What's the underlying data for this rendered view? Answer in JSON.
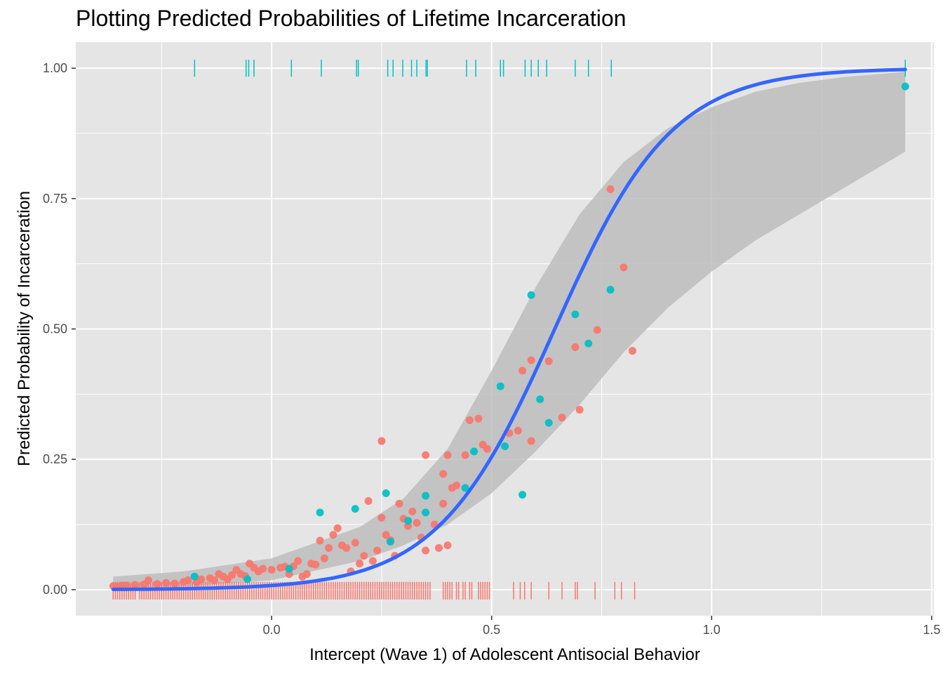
{
  "chart_data": {
    "type": "scatter",
    "title": "Plotting Predicted Probabilities of Lifetime Incarceration",
    "xlabel": "Intercept (Wave 1) of Adolescent Antisocial Behavior",
    "ylabel": "Predicted Probability of Incarceration",
    "xlim": [
      -0.445,
      1.505
    ],
    "ylim": [
      -0.05,
      1.05
    ],
    "x_ticks": [
      0.0,
      0.5,
      1.0,
      1.5
    ],
    "x_tick_labels": [
      "0.0",
      "0.5",
      "1.0",
      "1.5"
    ],
    "y_ticks": [
      0.0,
      0.25,
      0.5,
      0.75,
      1.0
    ],
    "y_tick_labels": [
      "0.00",
      "0.25",
      "0.50",
      "0.75",
      "1.00"
    ],
    "grid": true,
    "legend": "none",
    "colors": {
      "panel": "#e5e5e5",
      "grid": "#ffffff",
      "group_not_incarcerated": "#f8766d",
      "group_incarcerated": "#00bfc4",
      "fit_line": "#3366ff",
      "ribbon": "#bdbdbd",
      "tick_text": "#4d4d4d"
    },
    "series": [
      {
        "key": "not_incarcerated",
        "outcome": 0,
        "points": [
          [
            -0.36,
            0.007
          ],
          [
            -0.35,
            0.006
          ],
          [
            -0.34,
            0.008
          ],
          [
            -0.33,
            0.008
          ],
          [
            -0.31,
            0.009
          ],
          [
            -0.29,
            0.01
          ],
          [
            -0.28,
            0.018
          ],
          [
            -0.26,
            0.011
          ],
          [
            -0.24,
            0.013
          ],
          [
            -0.22,
            0.012
          ],
          [
            -0.2,
            0.015
          ],
          [
            -0.19,
            0.018
          ],
          [
            -0.17,
            0.014
          ],
          [
            -0.16,
            0.02
          ],
          [
            -0.14,
            0.022
          ],
          [
            -0.13,
            0.018
          ],
          [
            -0.12,
            0.03
          ],
          [
            -0.11,
            0.025
          ],
          [
            -0.1,
            0.02
          ],
          [
            -0.09,
            0.028
          ],
          [
            -0.08,
            0.038
          ],
          [
            -0.07,
            0.03
          ],
          [
            -0.06,
            0.026
          ],
          [
            -0.05,
            0.05
          ],
          [
            -0.04,
            0.042
          ],
          [
            -0.03,
            0.035
          ],
          [
            -0.02,
            0.04
          ],
          [
            0.0,
            0.038
          ],
          [
            0.02,
            0.042
          ],
          [
            0.03,
            0.044
          ],
          [
            0.04,
            0.03
          ],
          [
            0.05,
            0.045
          ],
          [
            0.06,
            0.055
          ],
          [
            0.07,
            0.025
          ],
          [
            0.08,
            0.03
          ],
          [
            0.09,
            0.05
          ],
          [
            0.1,
            0.048
          ],
          [
            0.11,
            0.094
          ],
          [
            0.12,
            0.06
          ],
          [
            0.13,
            0.08
          ],
          [
            0.14,
            0.105
          ],
          [
            0.15,
            0.118
          ],
          [
            0.16,
            0.085
          ],
          [
            0.17,
            0.08
          ],
          [
            0.18,
            0.035
          ],
          [
            0.19,
            0.09
          ],
          [
            0.2,
            0.05
          ],
          [
            0.21,
            0.065
          ],
          [
            0.22,
            0.17
          ],
          [
            0.23,
            0.055
          ],
          [
            0.24,
            0.075
          ],
          [
            0.25,
            0.285
          ],
          [
            0.25,
            0.138
          ],
          [
            0.26,
            0.105
          ],
          [
            0.27,
            0.095
          ],
          [
            0.28,
            0.065
          ],
          [
            0.29,
            0.165
          ],
          [
            0.3,
            0.136
          ],
          [
            0.31,
            0.122
          ],
          [
            0.32,
            0.15
          ],
          [
            0.33,
            0.128
          ],
          [
            0.34,
            0.1
          ],
          [
            0.35,
            0.258
          ],
          [
            0.35,
            0.075
          ],
          [
            0.37,
            0.125
          ],
          [
            0.38,
            0.08
          ],
          [
            0.39,
            0.165
          ],
          [
            0.39,
            0.222
          ],
          [
            0.4,
            0.258
          ],
          [
            0.4,
            0.085
          ],
          [
            0.41,
            0.195
          ],
          [
            0.42,
            0.2
          ],
          [
            0.44,
            0.258
          ],
          [
            0.45,
            0.325
          ],
          [
            0.47,
            0.328
          ],
          [
            0.48,
            0.278
          ],
          [
            0.49,
            0.27
          ],
          [
            0.54,
            0.3
          ],
          [
            0.56,
            0.305
          ],
          [
            0.57,
            0.42
          ],
          [
            0.59,
            0.44
          ],
          [
            0.59,
            0.285
          ],
          [
            0.63,
            0.438
          ],
          [
            0.66,
            0.33
          ],
          [
            0.69,
            0.465
          ],
          [
            0.7,
            0.345
          ],
          [
            0.74,
            0.498
          ],
          [
            0.77,
            0.768
          ],
          [
            0.8,
            0.618
          ],
          [
            0.82,
            0.458
          ]
        ]
      },
      {
        "key": "incarcerated",
        "outcome": 1,
        "points": [
          [
            -0.175,
            0.025
          ],
          [
            -0.055,
            0.02
          ],
          [
            0.04,
            0.04
          ],
          [
            0.11,
            0.148
          ],
          [
            0.19,
            0.155
          ],
          [
            0.26,
            0.185
          ],
          [
            0.27,
            0.092
          ],
          [
            0.31,
            0.132
          ],
          [
            0.35,
            0.18
          ],
          [
            0.35,
            0.148
          ],
          [
            0.44,
            0.195
          ],
          [
            0.46,
            0.265
          ],
          [
            0.52,
            0.39
          ],
          [
            0.53,
            0.275
          ],
          [
            0.57,
            0.182
          ],
          [
            0.59,
            0.565
          ],
          [
            0.61,
            0.365
          ],
          [
            0.63,
            0.32
          ],
          [
            0.69,
            0.528
          ],
          [
            0.72,
            0.472
          ],
          [
            0.77,
            0.575
          ],
          [
            1.44,
            0.965
          ]
        ]
      }
    ],
    "rug": {
      "incarcerated_x": [
        -0.175,
        -0.058,
        -0.052,
        -0.04,
        0.045,
        0.113,
        0.193,
        0.197,
        0.264,
        0.276,
        0.298,
        0.318,
        0.33,
        0.351,
        0.354,
        0.443,
        0.464,
        0.52,
        0.527,
        0.576,
        0.59,
        0.606,
        0.625,
        0.69,
        0.72,
        0.772,
        1.44
      ],
      "not_incarcerated_x": [
        -0.36,
        -0.355,
        -0.35,
        -0.345,
        -0.34,
        -0.335,
        -0.33,
        -0.325,
        -0.32,
        -0.315,
        -0.31,
        -0.3,
        -0.295,
        -0.29,
        -0.285,
        -0.28,
        -0.275,
        -0.27,
        -0.265,
        -0.26,
        -0.255,
        -0.25,
        -0.245,
        -0.24,
        -0.235,
        -0.23,
        -0.225,
        -0.22,
        -0.215,
        -0.21,
        -0.205,
        -0.2,
        -0.195,
        -0.19,
        -0.185,
        -0.18,
        -0.175,
        -0.17,
        -0.165,
        -0.16,
        -0.155,
        -0.15,
        -0.145,
        -0.14,
        -0.135,
        -0.13,
        -0.125,
        -0.12,
        -0.115,
        -0.11,
        -0.105,
        -0.1,
        -0.095,
        -0.09,
        -0.085,
        -0.08,
        -0.075,
        -0.07,
        -0.065,
        -0.06,
        -0.055,
        -0.05,
        -0.045,
        -0.04,
        -0.035,
        -0.03,
        -0.025,
        -0.02,
        -0.015,
        -0.01,
        -0.005,
        0.0,
        0.005,
        0.01,
        0.015,
        0.02,
        0.025,
        0.03,
        0.035,
        0.04,
        0.045,
        0.05,
        0.055,
        0.06,
        0.065,
        0.07,
        0.075,
        0.08,
        0.085,
        0.09,
        0.095,
        0.1,
        0.105,
        0.11,
        0.115,
        0.12,
        0.125,
        0.13,
        0.135,
        0.14,
        0.145,
        0.15,
        0.155,
        0.16,
        0.165,
        0.17,
        0.175,
        0.18,
        0.185,
        0.19,
        0.195,
        0.2,
        0.205,
        0.21,
        0.215,
        0.22,
        0.225,
        0.23,
        0.235,
        0.24,
        0.245,
        0.25,
        0.255,
        0.26,
        0.265,
        0.27,
        0.275,
        0.28,
        0.285,
        0.29,
        0.295,
        0.3,
        0.305,
        0.31,
        0.315,
        0.32,
        0.325,
        0.33,
        0.335,
        0.34,
        0.345,
        0.35,
        0.355,
        0.36,
        0.39,
        0.395,
        0.4,
        0.405,
        0.41,
        0.42,
        0.425,
        0.435,
        0.44,
        0.45,
        0.455,
        0.47,
        0.475,
        0.48,
        0.485,
        0.49,
        0.495,
        0.55,
        0.565,
        0.575,
        0.59,
        0.63,
        0.66,
        0.69,
        0.695,
        0.735,
        0.78,
        0.795,
        0.825
      ]
    },
    "fit": {
      "model": "logistic",
      "intercept": -4.82,
      "slope": 7.49,
      "x_range": [
        -0.36,
        1.44
      ],
      "ribbon": {
        "x": [
          -0.36,
          -0.2,
          0.0,
          0.2,
          0.3,
          0.4,
          0.5,
          0.6,
          0.7,
          0.8,
          0.9,
          1.0,
          1.1,
          1.2,
          1.3,
          1.44
        ],
        "lower": [
          0.002,
          0.006,
          0.018,
          0.055,
          0.085,
          0.125,
          0.185,
          0.265,
          0.355,
          0.455,
          0.54,
          0.61,
          0.67,
          0.72,
          0.77,
          0.84
        ],
        "upper": [
          0.025,
          0.035,
          0.06,
          0.12,
          0.175,
          0.27,
          0.42,
          0.58,
          0.72,
          0.82,
          0.885,
          0.925,
          0.955,
          0.972,
          0.983,
          0.993
        ]
      }
    }
  }
}
